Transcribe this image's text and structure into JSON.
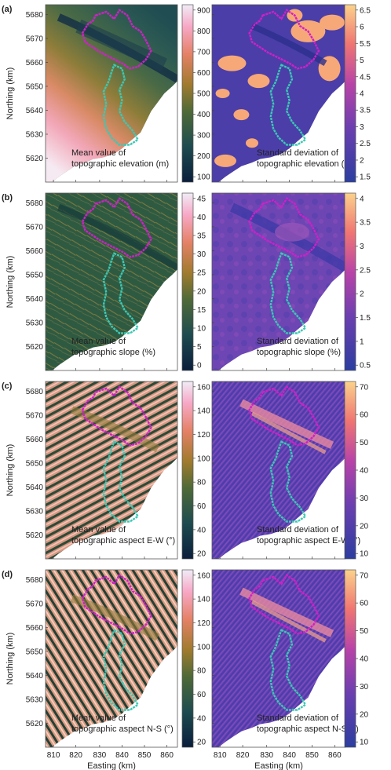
{
  "figure": {
    "panels": [
      {
        "label": "(a)",
        "left_caption": [
          "Mean value of",
          "topographic elevation (m)"
        ],
        "right_caption": [
          "Standard deviation of",
          "topographic elevation (m)"
        ],
        "left_colorbar_ticks": [
          "900",
          "800",
          "700",
          "600",
          "500",
          "400",
          "300",
          "200",
          "100"
        ],
        "right_colorbar_ticks": [
          "6.5",
          "6",
          "5.5",
          "5",
          "4.5",
          "4",
          "3.5",
          "3",
          "2.5",
          "2",
          "1.5"
        ],
        "left_cmap": "batlow",
        "right_cmap": "plasma",
        "left_texture": "elevation",
        "right_texture": "blobs"
      },
      {
        "label": "(b)",
        "left_caption": [
          "Mean value of",
          "topographic slope (%)"
        ],
        "right_caption": [
          "Standard deviation of",
          "topographic slope (%)"
        ],
        "left_colorbar_ticks": [
          "45",
          "40",
          "35",
          "30",
          "25",
          "20",
          "15",
          "10",
          "5",
          "0"
        ],
        "right_colorbar_ticks": [
          "4",
          "3.5",
          "3",
          "2.5",
          "2",
          "1.5",
          "1",
          "0.5"
        ],
        "left_cmap": "batlow",
        "right_cmap": "plasma",
        "left_texture": "slope",
        "right_texture": "smooth"
      },
      {
        "label": "(c)",
        "left_caption": [
          "Mean value of",
          "topographic aspect E-W (°)"
        ],
        "right_caption": [
          "Standard deviation of",
          "topographic aspect E-W (°)"
        ],
        "left_colorbar_ticks": [
          "160",
          "140",
          "120",
          "100",
          "80",
          "60",
          "40",
          "20"
        ],
        "right_colorbar_ticks": [
          "70",
          "60",
          "50",
          "40",
          "30",
          "20",
          "10"
        ],
        "left_cmap": "batlow",
        "right_cmap": "plasma",
        "left_texture": "aspect_ew",
        "right_texture": "fine"
      },
      {
        "label": "(d)",
        "left_caption": [
          "Mean value of",
          "topographic aspect N-S (°)"
        ],
        "right_caption": [
          "Standard deviation of",
          "topographic aspect N-S (°)"
        ],
        "left_colorbar_ticks": [
          "160",
          "140",
          "120",
          "100",
          "80",
          "60",
          "40",
          "20"
        ],
        "right_colorbar_ticks": [
          "70",
          "60",
          "50",
          "40",
          "30",
          "20",
          "10"
        ],
        "left_cmap": "batlow",
        "right_cmap": "plasma",
        "left_texture": "aspect_ns",
        "right_texture": "fine"
      }
    ],
    "y_axis_label": "Northing (km)",
    "y_ticks": [
      "5680",
      "5670",
      "5660",
      "5650",
      "5640",
      "5630",
      "5620"
    ],
    "x_axis_label": "Easting (km)",
    "x_ticks": [
      "810",
      "820",
      "830",
      "840",
      "850",
      "860"
    ],
    "outline_colors": {
      "catchment_north": "#d020c8",
      "catchment_south": "#3cc8b4"
    }
  }
}
